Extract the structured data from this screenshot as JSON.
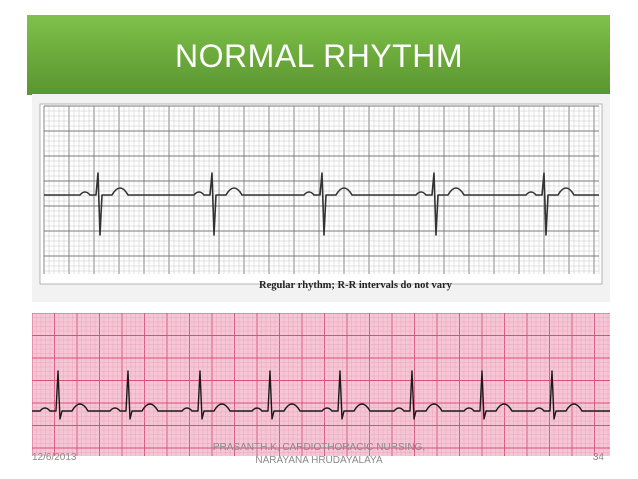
{
  "slide": {
    "title": "NORMAL RHYTHM",
    "top_strip_caption": "Regular rhythm; R-R intervals do not vary",
    "footer_date": "12/6/2013",
    "footer_credit_line1": "PRASANTH.K, CARDIOTHORACIC NURSING,",
    "footer_credit_line2": "NARAYANA HRUDAYALAYA",
    "page_number": "34"
  },
  "colors": {
    "header": "#6aa83a",
    "gray_paper": "#f2f2f2",
    "pink_paper": "#f5c6d6",
    "pink_grid": "#d9507a",
    "trace": "#1a1a1a"
  }
}
